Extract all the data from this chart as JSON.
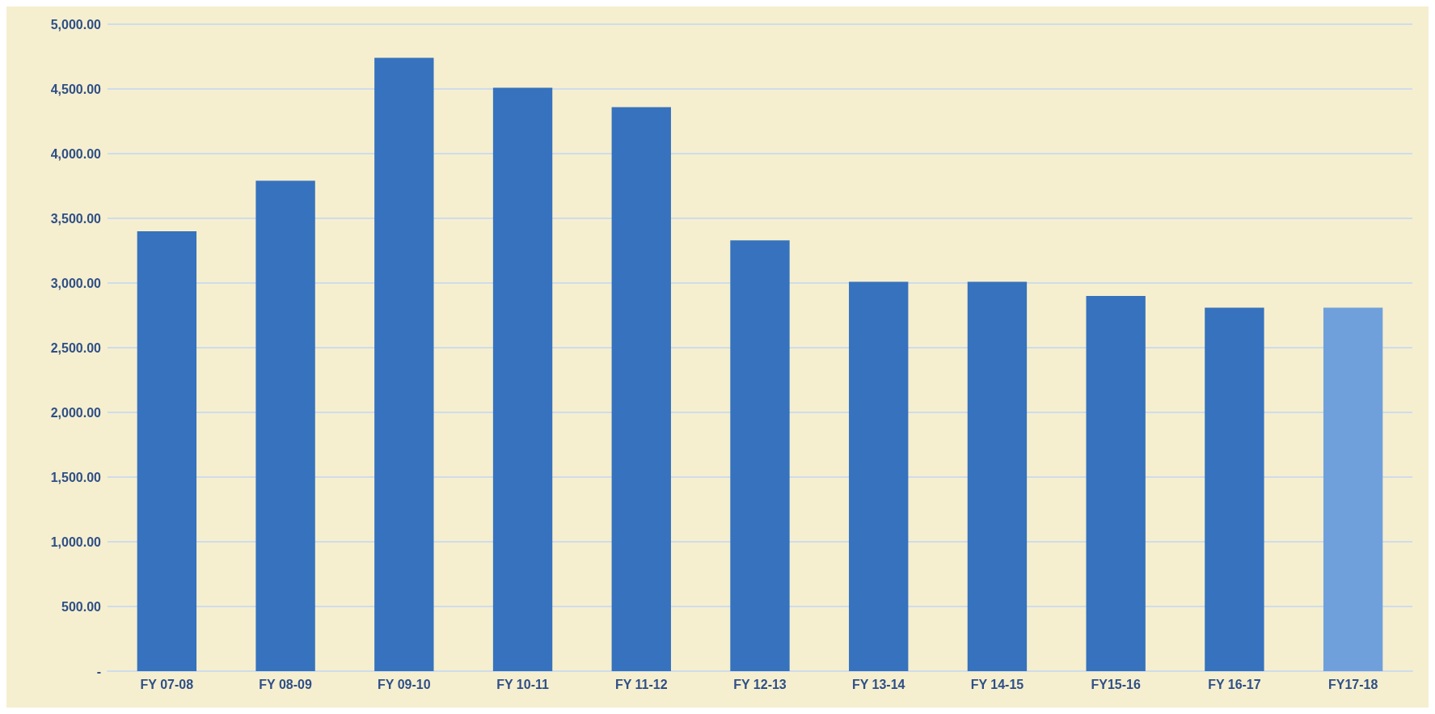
{
  "chart_data": {
    "type": "bar",
    "categories": [
      "FY 07-08",
      "FY 08-09",
      "FY 09-10",
      "FY 10-11",
      "FY 11-12",
      "FY 12-13",
      "FY 13-14",
      "FY 14-15",
      "FY15-16",
      "FY 16-17",
      "FY17-18"
    ],
    "values": [
      3400,
      3790,
      4740,
      4510,
      4360,
      3330,
      3010,
      3010,
      2900,
      2810,
      2810
    ],
    "colors": [
      "#3672bd",
      "#3672bd",
      "#3672bd",
      "#3672bd",
      "#3672bd",
      "#3672bd",
      "#3672bd",
      "#3672bd",
      "#3672bd",
      "#3672bd",
      "#6fa0dc"
    ],
    "ylim": [
      0,
      5000
    ],
    "yticks": [
      {
        "value": 0,
        "label": "-"
      },
      {
        "value": 500,
        "label": "500.00"
      },
      {
        "value": 1000,
        "label": "1,000.00"
      },
      {
        "value": 1500,
        "label": "1,500.00"
      },
      {
        "value": 2000,
        "label": "2,000.00"
      },
      {
        "value": 2500,
        "label": "2,500.00"
      },
      {
        "value": 3000,
        "label": "3,000.00"
      },
      {
        "value": 3500,
        "label": "3,500.00"
      },
      {
        "value": 4000,
        "label": "4,000.00"
      },
      {
        "value": 4500,
        "label": "4,500.00"
      },
      {
        "value": 5000,
        "label": "5,000.00"
      }
    ],
    "grid": true
  }
}
